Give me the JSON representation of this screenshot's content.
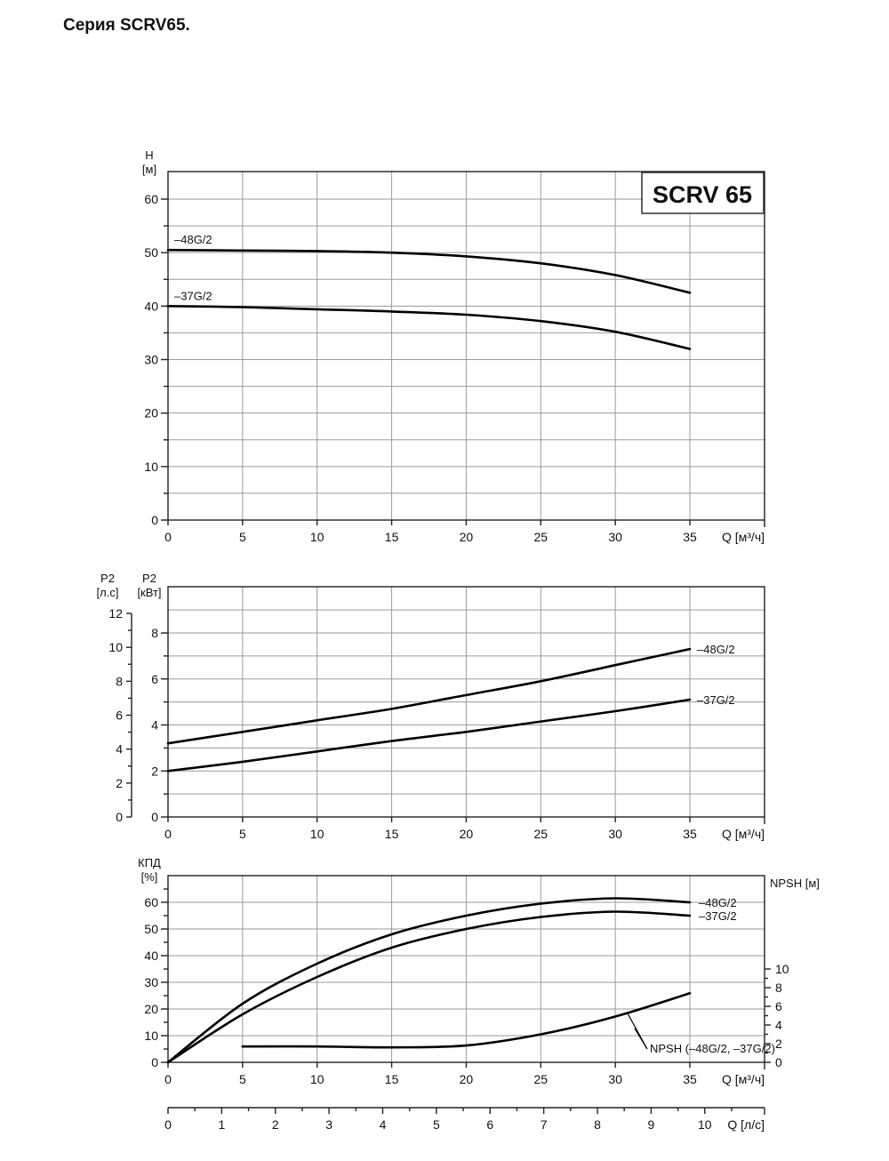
{
  "page": {
    "title": "Серия SCRV65."
  },
  "chart_data": [
    {
      "id": "head",
      "type": "line",
      "badge": "SCRV 65",
      "ylabel": "H",
      "yunit": "[м]",
      "xlabel": "Q [м³/ч]",
      "xlim": [
        0,
        40
      ],
      "ylim": [
        0,
        65
      ],
      "xticks": [
        0,
        5,
        10,
        15,
        20,
        25,
        30,
        35
      ],
      "yticks": [
        0,
        10,
        20,
        30,
        40,
        50,
        60
      ],
      "series": [
        {
          "name": "–48G/2",
          "x": [
            0,
            5,
            10,
            15,
            20,
            25,
            30,
            35
          ],
          "y": [
            50.5,
            50.4,
            50.3,
            50.0,
            49.3,
            48.0,
            45.8,
            42.5
          ]
        },
        {
          "name": "–37G/2",
          "x": [
            0,
            5,
            10,
            15,
            20,
            25,
            30,
            35
          ],
          "y": [
            40.0,
            39.8,
            39.4,
            39.0,
            38.4,
            37.2,
            35.2,
            32.0
          ]
        }
      ]
    },
    {
      "id": "power",
      "type": "line",
      "ylabel": "P2",
      "yunit": "[кВт]",
      "ylabel2": "P2",
      "yunit2": "[л.с]",
      "xlabel": "Q [м³/ч]",
      "xlim": [
        0,
        40
      ],
      "ylim": [
        0,
        9
      ],
      "xticks": [
        0,
        5,
        10,
        15,
        20,
        25,
        30,
        35
      ],
      "yticks": [
        0,
        2,
        4,
        6,
        8
      ],
      "yticks2": [
        0,
        2,
        4,
        6,
        8,
        10,
        12
      ],
      "series": [
        {
          "name": "–48G/2",
          "x": [
            0,
            5,
            10,
            15,
            20,
            25,
            30,
            35
          ],
          "y": [
            3.2,
            3.7,
            4.2,
            4.7,
            5.3,
            5.9,
            6.6,
            7.3
          ]
        },
        {
          "name": "–37G/2",
          "x": [
            0,
            5,
            10,
            15,
            20,
            25,
            30,
            35
          ],
          "y": [
            2.0,
            2.4,
            2.85,
            3.3,
            3.7,
            4.15,
            4.6,
            5.1
          ]
        }
      ]
    },
    {
      "id": "efficiency",
      "type": "line",
      "ylabel": "КПД",
      "yunit": "[%]",
      "ylabel2": "NPSH [м]",
      "xlabel": "Q [м³/ч]",
      "xlabel2": "Q [л/с]",
      "xlim": [
        0,
        40
      ],
      "ylim": [
        0,
        70
      ],
      "xticks": [
        0,
        5,
        10,
        15,
        20,
        25,
        30,
        35
      ],
      "yticks": [
        0,
        10,
        20,
        30,
        40,
        50,
        60
      ],
      "yticks2": [
        0,
        2,
        4,
        6,
        8,
        10
      ],
      "xticks2": [
        0,
        1,
        2,
        3,
        4,
        5,
        6,
        7,
        8,
        9,
        10
      ],
      "series": [
        {
          "name": "–48G/2",
          "x": [
            0,
            5,
            10,
            15,
            20,
            25,
            30,
            35
          ],
          "y": [
            0,
            22,
            37,
            48,
            55,
            59.5,
            61.5,
            60
          ]
        },
        {
          "name": "–37G/2",
          "x": [
            0,
            5,
            10,
            15,
            20,
            25,
            30,
            35
          ],
          "y": [
            0,
            18,
            32,
            43,
            50,
            54.5,
            56.5,
            55
          ]
        },
        {
          "name": "NPSH (–48G/2, –37G/2)",
          "axis": "right",
          "x": [
            5,
            10,
            15,
            20,
            25,
            30,
            35
          ],
          "y": [
            1.7,
            1.7,
            1.6,
            1.8,
            3.0,
            4.9,
            7.4
          ]
        }
      ]
    }
  ]
}
